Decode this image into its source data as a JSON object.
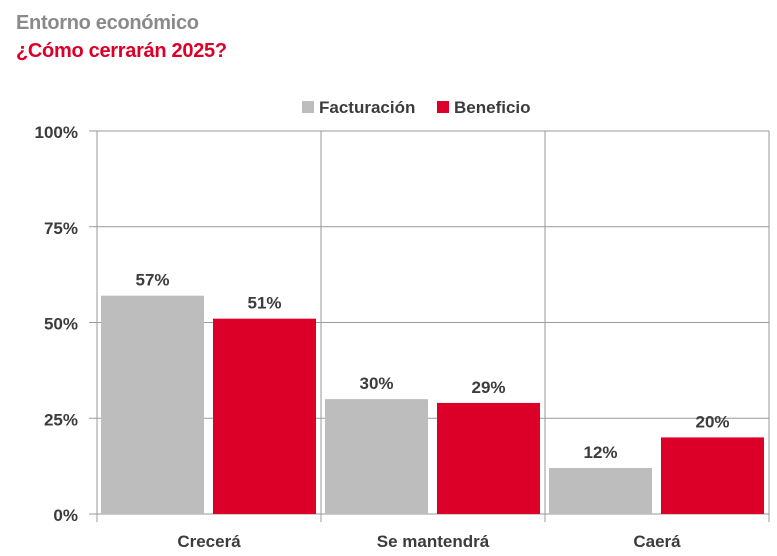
{
  "header": {
    "title": "Entorno económico",
    "subtitle": "¿Cómo cerrarán 2025?"
  },
  "chart_data": {
    "type": "bar",
    "title": "Entorno económico",
    "subtitle": "¿Cómo cerrarán 2025?",
    "categories": [
      "Crecerá",
      "Se mantendrá",
      "Caerá"
    ],
    "series": [
      {
        "name": "Facturación",
        "values": [
          57,
          30,
          12
        ],
        "labels": [
          "57%",
          "30%",
          "12%"
        ],
        "color": "#bdbdbd"
      },
      {
        "name": "Beneficio",
        "values": [
          51,
          29,
          20
        ],
        "labels": [
          "51%",
          "29%",
          "20%"
        ],
        "color": "#dc0028"
      }
    ],
    "ylim": [
      0,
      100
    ],
    "yticks": [
      0,
      25,
      50,
      75,
      100
    ],
    "ytick_labels": [
      "0%",
      "25%",
      "50%",
      "75%",
      "100%"
    ],
    "xlabel": "",
    "ylabel": "",
    "grid": true,
    "legend": "top-center"
  }
}
